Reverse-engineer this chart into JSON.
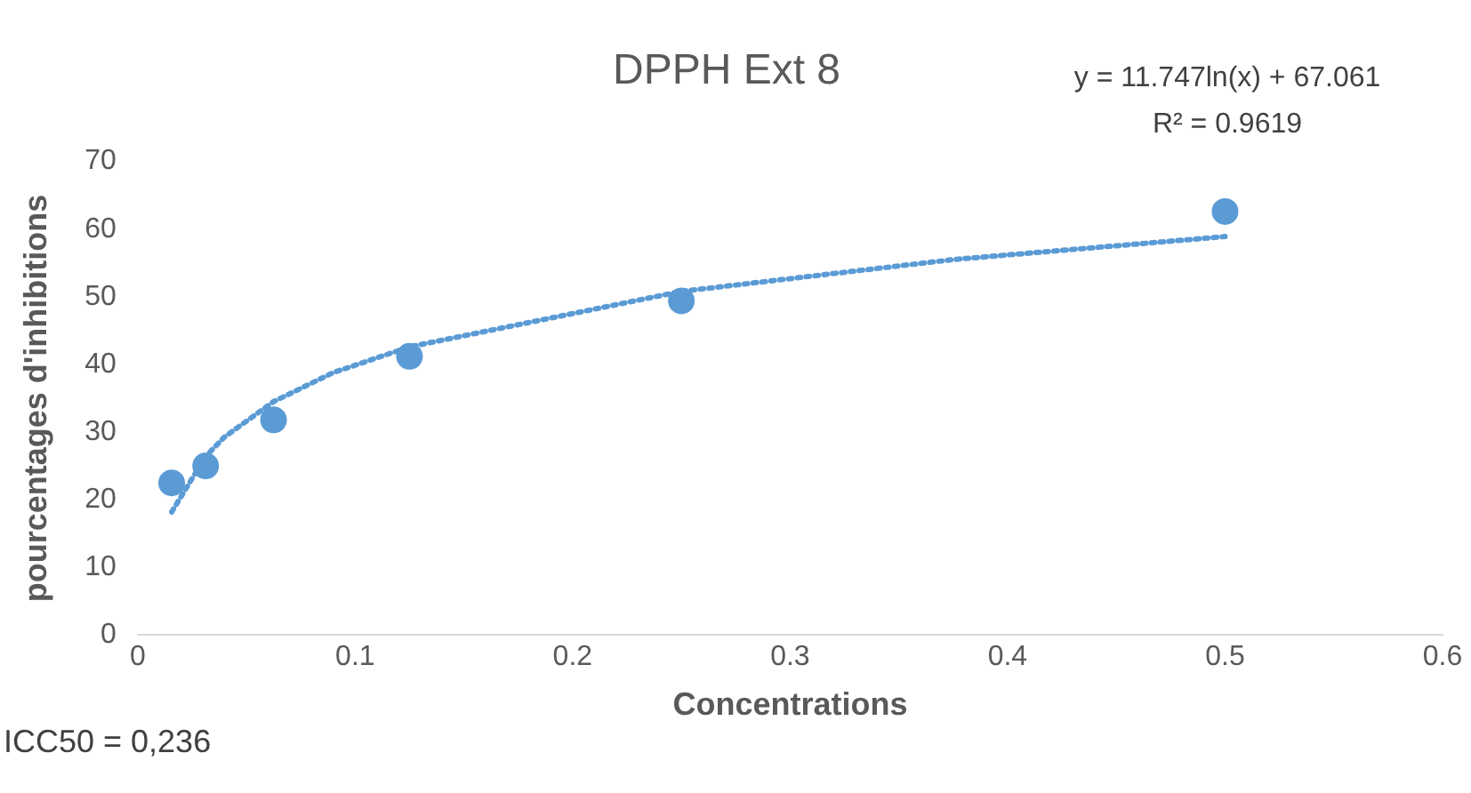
{
  "chart_data": {
    "type": "scatter",
    "title": "DPPH Ext 8",
    "xlabel": "Concentrations",
    "ylabel": "pourcentages d'inhibitions",
    "x": [
      0.015625,
      0.03125,
      0.0625,
      0.125,
      0.25,
      0.5
    ],
    "series": [
      {
        "color": "#5b9bd5",
        "marker": "circle",
        "values": [
          22.5,
          25,
          31.8,
          41.2,
          49.4,
          62.6
        ]
      },
      {
        "type": "line",
        "color": "#5b9bd5",
        "line_style": "dotted",
        "marker": "none",
        "x": [
          0.015625,
          0.03125,
          0.04,
          0.0625,
          0.09,
          0.125,
          0.25,
          0.375,
          0.5
        ],
        "values": [
          18.2,
          26.4,
          29.3,
          34.5,
          38.8,
          42.6,
          50.8,
          55.5,
          58.9
        ]
      }
    ],
    "xlim": [
      0,
      0.6
    ],
    "xticks": [
      0,
      0.1,
      0.2,
      0.3,
      0.4,
      0.5,
      0.6
    ],
    "ylim": [
      0,
      70
    ],
    "yticks": [
      0,
      10,
      20,
      30,
      40,
      50,
      60,
      70
    ],
    "grid": false,
    "legend": false,
    "annotations": [
      "y = 11.747ln(x) + 67.061",
      "R² = 0.9619",
      "ICC50 = 0,236"
    ]
  }
}
